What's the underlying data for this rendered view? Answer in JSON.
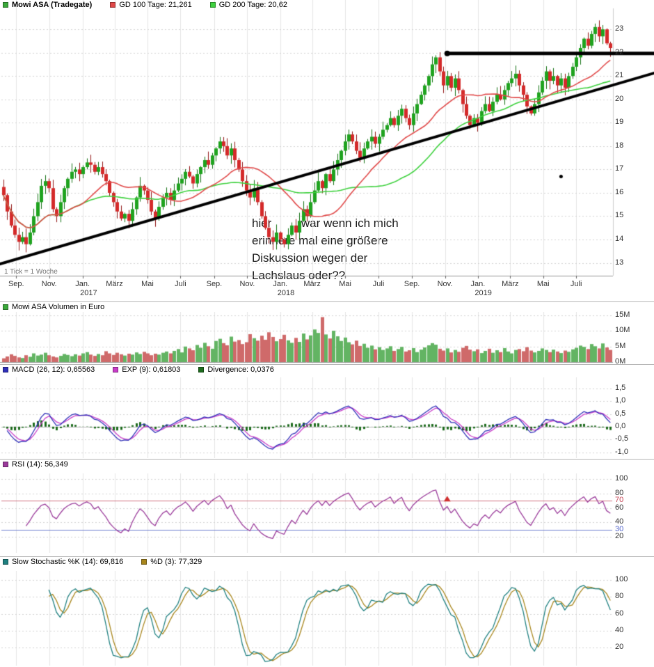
{
  "main": {
    "legend": [
      {
        "label": "Mowi ASA (Tradegate)",
        "color": "#3aa83a",
        "bold": true
      },
      {
        "label": "GD 100 Tage: 21,261",
        "color": "#e04848",
        "bold": false
      },
      {
        "label": "GD 200 Tage: 20,62",
        "color": "#3ed13e",
        "bold": false
      }
    ],
    "tick_note": "1 Tick = 1 Woche",
    "annotation": {
      "lines": [
        "hier         war wenn ich mich",
        "erinnere mal eine größere",
        "Diskussion wegen der",
        "Lachslaus oder??"
      ]
    },
    "trendlines": [
      {
        "type": "segment",
        "w1": -2,
        "p1": 12.9,
        "w2": 172,
        "p2": 21.15,
        "width": 4
      },
      {
        "type": "hline",
        "w": 117,
        "p": 21.97,
        "width": 5,
        "start_dot": true
      }
    ],
    "dot_marker": {
      "week": 147,
      "price": 16.7
    },
    "y_ticks": [
      {
        "label": "23",
        "value": 23
      },
      {
        "label": "22",
        "value": 22
      },
      {
        "label": "21",
        "value": 21
      },
      {
        "label": "20",
        "value": 20
      },
      {
        "label": "19",
        "value": 19
      },
      {
        "label": "18",
        "value": 18
      },
      {
        "label": "17",
        "value": 17
      },
      {
        "label": "16",
        "value": 16
      },
      {
        "label": "15",
        "value": 15
      },
      {
        "label": "14",
        "value": 14
      },
      {
        "label": "13",
        "value": 13
      }
    ]
  },
  "volume": {
    "legend": [
      {
        "label": "Mowi ASA Volumen in Euro",
        "color": "#3aa83a",
        "bold": false
      }
    ],
    "y_ticks": [
      {
        "label": "15M",
        "value": 15
      },
      {
        "label": "10M",
        "value": 10
      },
      {
        "label": "5M",
        "value": 5
      },
      {
        "label": "0M",
        "value": 0
      }
    ]
  },
  "macd": {
    "legend": [
      {
        "label": "MACD (26, 12): 0,65563",
        "color": "#2f2fb8",
        "bold": false
      },
      {
        "label": "EXP (9): 0,61803",
        "color": "#c83cc8",
        "bold": false
      },
      {
        "label": "Divergence: 0,0376",
        "color": "#1d6b1d",
        "bold": false
      }
    ],
    "y_ticks": [
      {
        "label": "1,5",
        "value": 1.5
      },
      {
        "label": "1,0",
        "value": 1.0
      },
      {
        "label": "0,5",
        "value": 0.5
      },
      {
        "label": "0,0",
        "value": 0.0
      },
      {
        "label": "-0,5",
        "value": -0.5
      },
      {
        "label": "-1,0",
        "value": -1.0
      }
    ]
  },
  "rsi": {
    "legend": [
      {
        "label": "RSI (14): 56,349",
        "color": "#9a3a9a",
        "bold": false
      }
    ],
    "overbought": 70,
    "oversold": 30,
    "marker": {
      "week": 117,
      "value": 72
    },
    "y_ticks": [
      {
        "label": "100",
        "value": 100
      },
      {
        "label": "80",
        "value": 80
      },
      {
        "label": "70",
        "value": 70,
        "color": "#c84455"
      },
      {
        "label": "60",
        "value": 60
      },
      {
        "label": "40",
        "value": 40
      },
      {
        "label": "30",
        "value": 30,
        "color": "#5566cc"
      },
      {
        "label": "20",
        "value": 20
      }
    ]
  },
  "stoch": {
    "legend": [
      {
        "label": "Slow Stochastic %K (14): 69,816",
        "color": "#1f8080",
        "bold": false
      },
      {
        "label": "%D (3): 77,329",
        "color": "#a8861c",
        "bold": false
      }
    ],
    "y_ticks": [
      {
        "label": "100",
        "value": 100
      },
      {
        "label": "80",
        "value": 80
      },
      {
        "label": "60",
        "value": 60
      },
      {
        "label": "40",
        "value": 40
      },
      {
        "label": "20",
        "value": 20
      }
    ]
  },
  "x_axis": {
    "month_ticks": [
      {
        "label": "Sep.",
        "week": 3.4
      },
      {
        "label": "Nov.",
        "week": 12.1
      },
      {
        "label": "Jan.",
        "week": 20.9
      },
      {
        "label": "März",
        "week": 29.3
      },
      {
        "label": "Mai",
        "week": 38.0
      },
      {
        "label": "Juli",
        "week": 46.7
      },
      {
        "label": "Sep.",
        "week": 55.6
      },
      {
        "label": "Nov.",
        "week": 64.3
      },
      {
        "label": "Jan.",
        "week": 73.0
      },
      {
        "label": "März",
        "week": 81.4
      },
      {
        "label": "Mai",
        "week": 90.1
      },
      {
        "label": "Juli",
        "week": 98.9
      },
      {
        "label": "Sep.",
        "week": 107.7
      },
      {
        "label": "Nov.",
        "week": 116.4
      },
      {
        "label": "Jan.",
        "week": 125.1
      },
      {
        "label": "März",
        "week": 133.6
      },
      {
        "label": "Mai",
        "week": 142.3
      },
      {
        "label": "Juli",
        "week": 151.0
      }
    ],
    "year_labels": [
      {
        "label": "2017",
        "week": 22.5
      },
      {
        "label": "2018",
        "week": 74.5
      },
      {
        "label": "2019",
        "week": 126.5
      }
    ]
  },
  "colors": {
    "candle_up": "#1fa31f",
    "candle_up_border": "#127012",
    "candle_down": "#d42a2a",
    "candle_down_border": "#911414",
    "gd100": "#e04848",
    "gd200": "#3ed13e",
    "trend": "#000000",
    "vol_up": "#63b463",
    "vol_down": "#cf6a6a",
    "macd": "#2f2fb8",
    "signal": "#c83cc8",
    "hist": "#1d6b1d",
    "rsi": "#9a3a9a",
    "rsi_hi": "#d07080",
    "rsi_lo": "#7080d0",
    "stoch_k": "#1f8080",
    "stoch_d": "#a8861c",
    "grid": "#e4e4e4",
    "grid_dot": "#d2d2d2",
    "axis": "#999999",
    "label": "#333333",
    "marker_triangle": "#d03030"
  },
  "chart_data": {
    "type": "candlestick",
    "x_unit": "week",
    "weeks": 161,
    "x_range_note": "Aug 2016 - Sep 2019",
    "y_range": [
      12.45,
      23.9
    ],
    "closes": [
      15.9,
      15.2,
      14.6,
      14.2,
      13.9,
      14.1,
      13.8,
      14.3,
      15.0,
      15.6,
      16.3,
      16.5,
      16.2,
      15.3,
      15.0,
      15.6,
      16.2,
      16.6,
      16.9,
      17.0,
      16.8,
      17.1,
      17.3,
      17.2,
      16.9,
      17.1,
      16.8,
      16.5,
      16.0,
      15.6,
      15.2,
      14.9,
      15.1,
      14.8,
      15.3,
      15.8,
      16.3,
      16.1,
      15.7,
      15.2,
      14.9,
      15.4,
      15.8,
      16.0,
      15.7,
      16.1,
      16.4,
      16.6,
      16.9,
      16.7,
      16.4,
      16.8,
      17.1,
      17.4,
      17.2,
      17.6,
      17.9,
      18.2,
      18.0,
      17.6,
      17.9,
      17.4,
      17.0,
      16.5,
      16.1,
      15.8,
      16.2,
      15.6,
      15.0,
      14.5,
      14.1,
      13.9,
      14.3,
      14.0,
      13.8,
      14.2,
      14.6,
      14.3,
      14.8,
      15.3,
      15.0,
      15.6,
      16.1,
      16.5,
      16.2,
      16.8,
      16.5,
      17.0,
      17.4,
      17.8,
      18.2,
      18.5,
      18.2,
      17.8,
      17.5,
      17.9,
      18.2,
      18.4,
      18.1,
      18.4,
      18.7,
      18.9,
      19.2,
      18.9,
      19.3,
      19.6,
      19.2,
      18.9,
      19.4,
      19.8,
      20.2,
      20.6,
      21.0,
      21.5,
      21.8,
      21.2,
      20.6,
      21.0,
      20.5,
      20.9,
      20.4,
      19.8,
      19.3,
      18.9,
      19.2,
      19.0,
      19.5,
      19.8,
      19.5,
      19.9,
      20.2,
      20.0,
      20.4,
      20.7,
      20.9,
      21.1,
      20.6,
      20.2,
      19.7,
      19.4,
      19.8,
      20.3,
      20.8,
      21.2,
      20.8,
      21.0,
      20.6,
      20.9,
      20.5,
      21.0,
      21.4,
      21.8,
      22.2,
      22.6,
      22.3,
      22.8,
      23.1,
      22.7,
      23.0,
      22.4,
      22.2
    ],
    "volumes_millions": [
      1.2,
      1.8,
      2.5,
      2.0,
      1.5,
      1.3,
      2.2,
      1.7,
      2.8,
      2.1,
      2.4,
      3.0,
      2.2,
      1.8,
      1.5,
      2.0,
      2.6,
      2.3,
      1.9,
      2.5,
      2.1,
      2.8,
      3.2,
      2.4,
      2.0,
      2.6,
      2.2,
      3.5,
      2.8,
      2.3,
      3.0,
      2.5,
      2.1,
      2.7,
      2.4,
      3.1,
      2.6,
      3.3,
      2.8,
      2.2,
      2.7,
      2.4,
      3.0,
      3.4,
      2.8,
      3.6,
      4.2,
      3.1,
      5.0,
      4.4,
      3.8,
      5.5,
      4.6,
      6.2,
      5.1,
      4.3,
      6.8,
      7.5,
      6.1,
      5.4,
      8.2,
      6.6,
      7.1,
      5.8,
      6.4,
      9.0,
      7.7,
      6.9,
      8.5,
      7.2,
      9.6,
      8.1,
      6.7,
      7.4,
      8.8,
      7.0,
      6.2,
      7.8,
      6.5,
      9.2,
      7.3,
      8.6,
      10.5,
      9.4,
      14.5,
      8.9,
      7.6,
      10.1,
      8.3,
      6.8,
      7.9,
      6.4,
      5.7,
      6.9,
      5.2,
      5.9,
      4.6,
      5.3,
      4.1,
      4.8,
      3.9,
      4.4,
      5.1,
      3.6,
      4.2,
      4.9,
      3.4,
      3.8,
      4.5,
      3.2,
      4.0,
      4.7,
      5.4,
      6.1,
      5.6,
      4.3,
      3.7,
      4.4,
      3.1,
      3.9,
      3.3,
      4.6,
      5.2,
      4.0,
      3.5,
      4.1,
      2.9,
      3.6,
      4.3,
      3.0,
      3.8,
      3.2,
      4.5,
      3.4,
      2.8,
      3.9,
      4.2,
      3.5,
      4.8,
      3.7,
      3.1,
      3.6,
      4.4,
      3.9,
      3.2,
      4.0,
      3.4,
      2.9,
      3.7,
      3.3,
      4.1,
      4.6,
      5.3,
      4.9,
      4.2,
      5.8,
      5.1,
      4.4,
      6.0,
      4.7,
      3.9
    ],
    "indicators": {
      "gd100_weeks": 20,
      "gd200_weeks": 40,
      "macd_fast_weeks": 4,
      "macd_slow_weeks": 10,
      "macd_signal_weeks": 3,
      "rsi_weeks": 8,
      "stoch_weeks": 10,
      "stoch_smooth": 3,
      "gd100_value": "21,261",
      "gd200_value": "20,62",
      "macd_value": "0,65563",
      "exp_value": "0,61803",
      "divergence_value": "0,0376",
      "rsi_value": "56,349",
      "stoch_k_value": "69,816",
      "stoch_d_value": "77,329"
    }
  }
}
